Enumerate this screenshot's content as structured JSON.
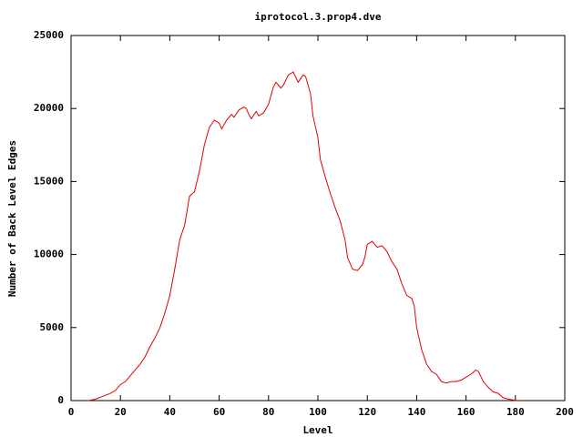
{
  "chart_data": {
    "type": "line",
    "title": "iprotocol.3.prop4.dve",
    "x_label": "Level",
    "y_label": "Number of Back Level Edges",
    "xlim": [
      0,
      200
    ],
    "ylim": [
      0,
      25000
    ],
    "xticks": [
      0,
      20,
      40,
      60,
      80,
      100,
      120,
      140,
      160,
      180,
      200
    ],
    "yticks": [
      0,
      5000,
      10000,
      15000,
      20000,
      25000
    ],
    "grid": false,
    "series": [
      {
        "name": null,
        "color": "#e00000",
        "x": [
          7,
          10,
          13,
          16,
          18,
          20,
          22,
          24,
          26,
          28,
          30,
          32,
          34,
          36,
          38,
          40,
          42,
          44,
          46,
          48,
          50,
          52,
          54,
          56,
          58,
          60,
          61,
          63,
          65,
          66,
          68,
          70,
          71,
          72,
          73,
          75,
          76,
          78,
          80,
          82,
          83,
          85,
          86,
          88,
          90,
          92,
          94,
          95,
          97,
          98,
          100,
          101,
          103,
          105,
          107,
          109,
          111,
          112,
          114,
          116,
          118,
          119,
          120,
          122,
          124,
          126,
          128,
          130,
          132,
          134,
          136,
          138,
          139,
          140,
          142,
          144,
          146,
          148,
          150,
          152,
          154,
          156,
          158,
          160,
          162,
          164,
          165,
          167,
          169,
          171,
          173,
          175,
          177,
          179,
          181
        ],
        "values": [
          0,
          100,
          300,
          500,
          700,
          1100,
          1300,
          1700,
          2100,
          2500,
          3000,
          3700,
          4300,
          5000,
          6000,
          7200,
          9000,
          11000,
          12000,
          14000,
          14300,
          15700,
          17500,
          18700,
          19200,
          19000,
          18600,
          19200,
          19600,
          19400,
          19900,
          20100,
          20000,
          19600,
          19300,
          19800,
          19500,
          19700,
          20300,
          21500,
          21800,
          21400,
          21600,
          22300,
          22500,
          21800,
          22300,
          22200,
          21000,
          19500,
          18000,
          16500,
          15300,
          14200,
          13200,
          12300,
          11000,
          9800,
          9000,
          8900,
          9300,
          9800,
          10700,
          10900,
          10500,
          10600,
          10200,
          9500,
          9000,
          8000,
          7200,
          7000,
          6500,
          5000,
          3500,
          2500,
          2000,
          1800,
          1300,
          1200,
          1300,
          1300,
          1400,
          1600,
          1800,
          2100,
          2000,
          1300,
          900,
          600,
          500,
          200,
          100,
          50,
          0
        ]
      }
    ]
  }
}
